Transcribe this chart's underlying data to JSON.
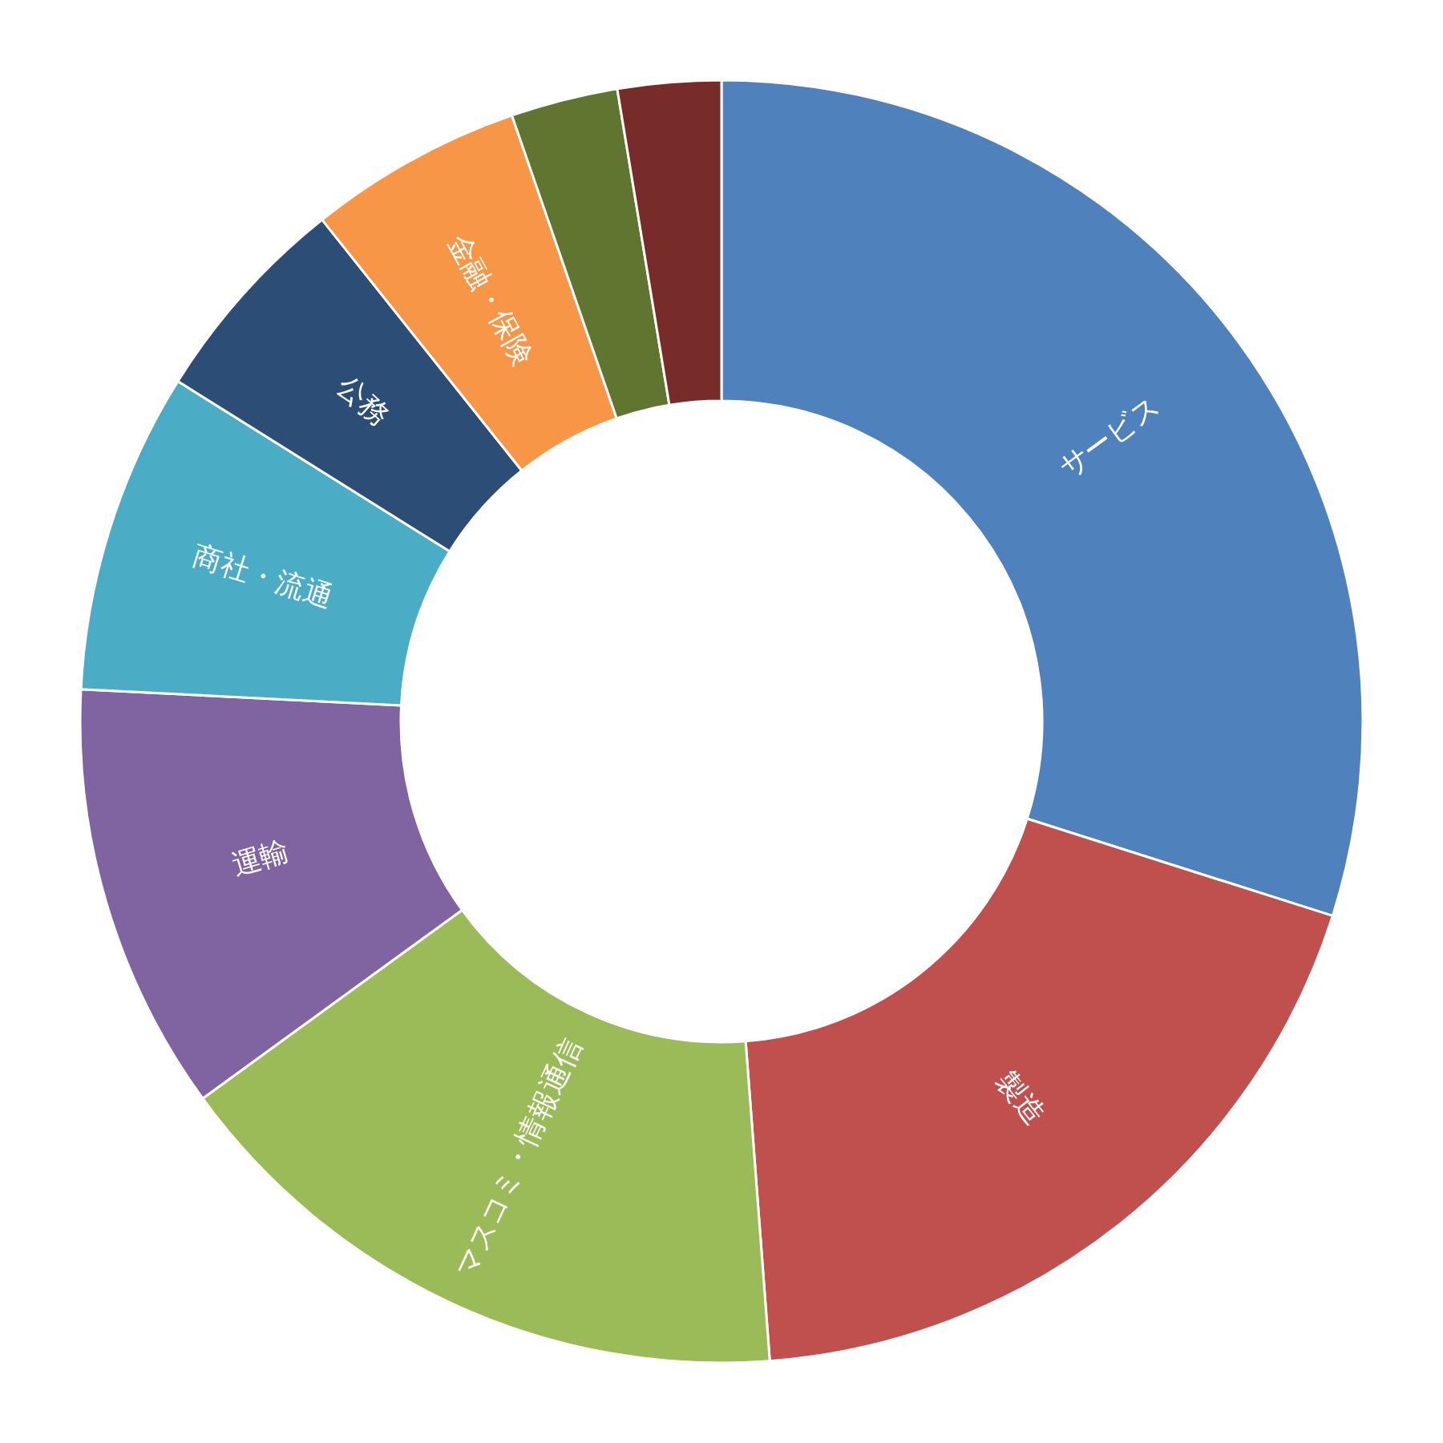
{
  "chart_data": {
    "type": "donut",
    "categories": [
      "サービス",
      "製造",
      "マスコミ・情報通信",
      "運輸",
      "商社・流通",
      "公務",
      "金融・保険",
      null,
      null
    ],
    "values": [
      29.9,
      18.9,
      16.2,
      10.8,
      8.1,
      5.4,
      5.4,
      2.7,
      2.6
    ],
    "colors": [
      "#4f81bd",
      "#c0504d",
      "#9bbb59",
      "#8064a2",
      "#4bacc6",
      "#2c4d75",
      "#f79646",
      "#5f7530",
      "#772c2a"
    ]
  }
}
